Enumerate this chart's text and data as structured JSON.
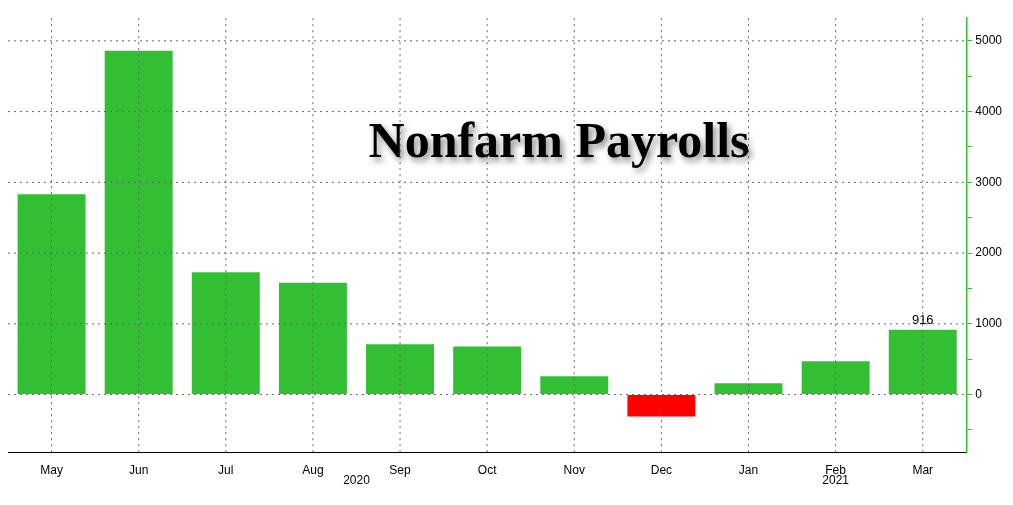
{
  "chart_data": {
    "type": "bar",
    "title": "Nonfarm Payrolls",
    "categories": [
      "May",
      "Jun",
      "Jul",
      "Aug",
      "Sep",
      "Oct",
      "Nov",
      "Dec",
      "Jan",
      "Feb",
      "Mar"
    ],
    "values": [
      2830,
      4860,
      1730,
      1580,
      710,
      680,
      260,
      -310,
      160,
      470,
      916
    ],
    "colors": [
      "#33bf33",
      "#33bf33",
      "#33bf33",
      "#33bf33",
      "#33bf33",
      "#33bf33",
      "#33bf33",
      "#ff0000",
      "#33bf33",
      "#33bf33",
      "#33bf33"
    ],
    "value_labels": [
      null,
      null,
      null,
      null,
      null,
      null,
      null,
      null,
      null,
      null,
      "916"
    ],
    "ylim": [
      -820,
      5320
    ],
    "yticks": [
      {
        "value": -500,
        "label": null
      },
      0,
      {
        "value": 500,
        "label": null
      },
      1000,
      {
        "value": 1500,
        "label": null
      },
      2000,
      {
        "value": 2500,
        "label": null
      },
      3000,
      {
        "value": 3500,
        "label": null
      },
      4000,
      {
        "value": 4500,
        "label": null
      },
      5000
    ],
    "annotations": [
      "2020",
      "2021"
    ],
    "grid": true
  }
}
